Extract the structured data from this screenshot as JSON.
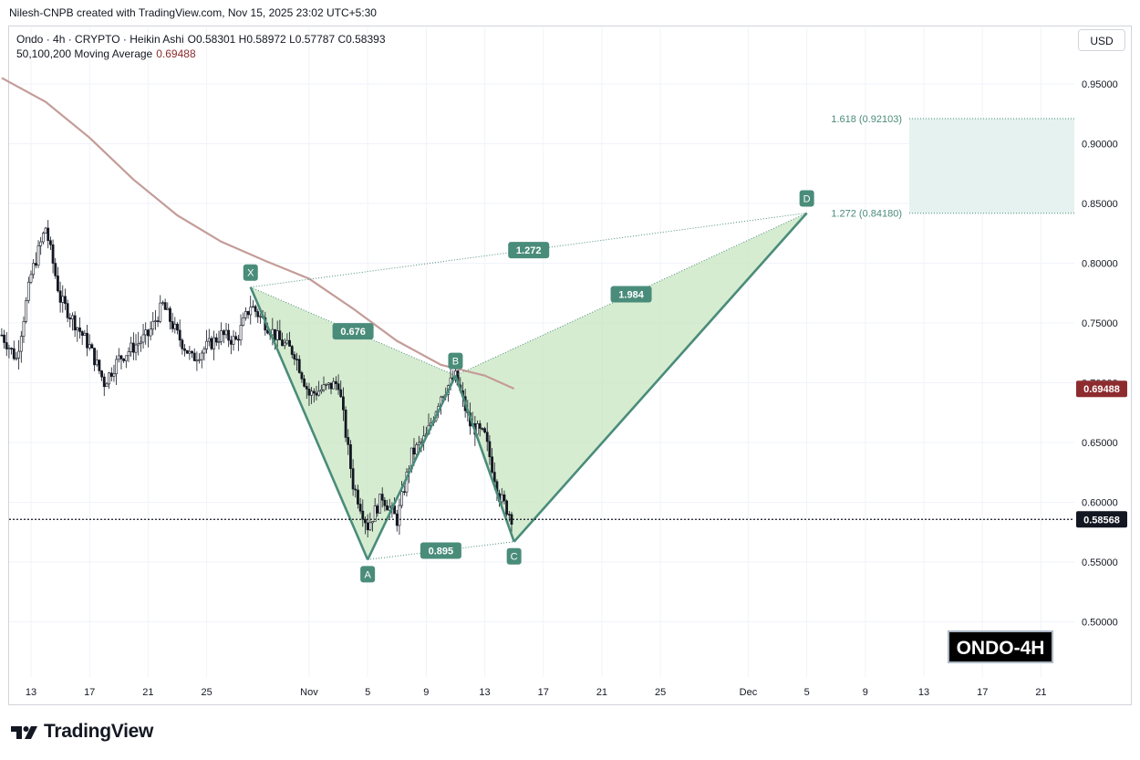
{
  "attribution": "Nilesh-CNPB created with TradingView.com, Nov 15, 2025 23:02 UTC+5:30",
  "legend": {
    "title": "Ondo · 4h · CRYPTO · Heikin Ashi",
    "ohlc": "O0.58301 H0.58972 L0.57787 C0.58393",
    "ma_label": "50,100,200 Moving Average",
    "ma_value": "0.69488"
  },
  "currency": "USD",
  "ticker_label": "ONDO-4H",
  "brand": "TradingView",
  "colors": {
    "pattern_fill": "#c8e6c0",
    "pattern_line": "#4a8c7a",
    "label_bg": "#4a8c7a",
    "ma_line": "#c49c98",
    "ma_badge": "#8d2b2f",
    "target_zone": "#e6f2ef",
    "price_line": "#131722"
  },
  "chart_data": {
    "type": "candlestick",
    "style": "Heikin Ashi",
    "interval": "4h",
    "x_ticks": [
      "13",
      "17",
      "21",
      "25",
      "Nov",
      "5",
      "9",
      "13",
      "17",
      "21",
      "25",
      "Dec",
      "5",
      "9",
      "13",
      "17",
      "21"
    ],
    "x_tick_dates": [
      "2025-10-13",
      "2025-10-17",
      "2025-10-21",
      "2025-10-25",
      "2025-11-01",
      "2025-11-05",
      "2025-11-09",
      "2025-11-13",
      "2025-11-17",
      "2025-11-21",
      "2025-11-25",
      "2025-12-01",
      "2025-12-05",
      "2025-12-09",
      "2025-12-13",
      "2025-12-17",
      "2025-12-21"
    ],
    "y_ticks": [
      "0.95000",
      "0.90000",
      "0.85000",
      "0.80000",
      "0.75000",
      "0.70000",
      "0.65000",
      "0.60000",
      "0.55000",
      "0.50000"
    ],
    "y_range": [
      0.465,
      0.99
    ],
    "price_path": [
      {
        "date": "2025-10-11",
        "price": 0.74
      },
      {
        "date": "2025-10-12",
        "price": 0.72
      },
      {
        "date": "2025-10-13",
        "price": 0.79
      },
      {
        "date": "2025-10-14",
        "price": 0.83
      },
      {
        "date": "2025-10-15",
        "price": 0.77
      },
      {
        "date": "2025-10-16",
        "price": 0.75
      },
      {
        "date": "2025-10-17",
        "price": 0.73
      },
      {
        "date": "2025-10-18",
        "price": 0.7
      },
      {
        "date": "2025-10-19",
        "price": 0.72
      },
      {
        "date": "2025-10-20",
        "price": 0.73
      },
      {
        "date": "2025-10-21",
        "price": 0.74
      },
      {
        "date": "2025-10-22",
        "price": 0.765
      },
      {
        "date": "2025-10-23",
        "price": 0.74
      },
      {
        "date": "2025-10-24",
        "price": 0.72
      },
      {
        "date": "2025-10-25",
        "price": 0.73
      },
      {
        "date": "2025-10-26",
        "price": 0.74
      },
      {
        "date": "2025-10-27",
        "price": 0.735
      },
      {
        "date": "2025-10-28",
        "price": 0.765
      },
      {
        "date": "2025-10-29",
        "price": 0.75
      },
      {
        "date": "2025-10-30",
        "price": 0.735
      },
      {
        "date": "2025-10-31",
        "price": 0.725
      },
      {
        "date": "2025-11-01",
        "price": 0.69
      },
      {
        "date": "2025-11-02",
        "price": 0.695
      },
      {
        "date": "2025-11-03",
        "price": 0.7
      },
      {
        "date": "2025-11-04",
        "price": 0.615
      },
      {
        "date": "2025-11-05",
        "price": 0.58
      },
      {
        "date": "2025-11-06",
        "price": 0.605
      },
      {
        "date": "2025-11-07",
        "price": 0.585
      },
      {
        "date": "2025-11-08",
        "price": 0.64
      },
      {
        "date": "2025-11-09",
        "price": 0.655
      },
      {
        "date": "2025-11-10",
        "price": 0.69
      },
      {
        "date": "2025-11-11",
        "price": 0.705
      },
      {
        "date": "2025-11-12",
        "price": 0.665
      },
      {
        "date": "2025-11-13",
        "price": 0.655
      },
      {
        "date": "2025-11-14",
        "price": 0.605
      },
      {
        "date": "2025-11-15",
        "price": 0.584
      }
    ],
    "moving_average": {
      "label": "50,100,200 Moving Average",
      "value": 0.69488,
      "points": [
        {
          "date": "2025-10-11",
          "price": 0.955
        },
        {
          "date": "2025-10-14",
          "price": 0.935
        },
        {
          "date": "2025-10-17",
          "price": 0.905
        },
        {
          "date": "2025-10-20",
          "price": 0.87
        },
        {
          "date": "2025-10-23",
          "price": 0.84
        },
        {
          "date": "2025-10-26",
          "price": 0.818
        },
        {
          "date": "2025-10-29",
          "price": 0.802
        },
        {
          "date": "2025-11-01",
          "price": 0.787
        },
        {
          "date": "2025-11-04",
          "price": 0.762
        },
        {
          "date": "2025-11-07",
          "price": 0.735
        },
        {
          "date": "2025-11-10",
          "price": 0.715
        },
        {
          "date": "2025-11-13",
          "price": 0.706
        },
        {
          "date": "2025-11-15",
          "price": 0.695
        }
      ]
    },
    "last_price": 0.58568,
    "harmonic_pattern": {
      "points": [
        {
          "label": "X",
          "date": "2025-10-28",
          "price": 0.78
        },
        {
          "label": "A",
          "date": "2025-11-05",
          "price": 0.552
        },
        {
          "label": "B",
          "date": "2025-11-11",
          "price": 0.706
        },
        {
          "label": "C",
          "date": "2025-11-15",
          "price": 0.567
        },
        {
          "label": "D",
          "date": "2025-12-05",
          "price": 0.842
        }
      ],
      "ratios": [
        {
          "label": "0.676",
          "between": [
            "X",
            "B"
          ]
        },
        {
          "label": "0.895",
          "between": [
            "A",
            "C"
          ]
        },
        {
          "label": "1.984",
          "between": [
            "B",
            "D"
          ]
        },
        {
          "label": "1.272",
          "between": [
            "X",
            "D"
          ]
        }
      ]
    },
    "target_zone": {
      "levels": [
        {
          "label": "1.618 (0.92103)",
          "price": 0.92103
        },
        {
          "label": "1.272 (0.84180)",
          "price": 0.8418
        }
      ],
      "start_date": "2025-12-12"
    }
  }
}
